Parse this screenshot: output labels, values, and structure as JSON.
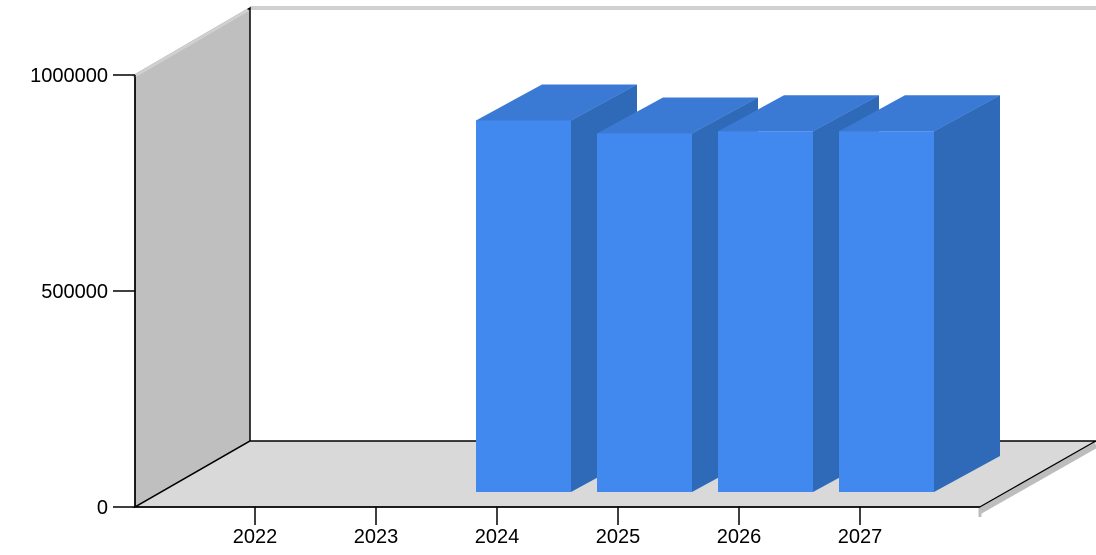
{
  "chart_data": {
    "type": "bar",
    "categories": [
      "2022",
      "2023",
      "2024",
      "2025",
      "2026",
      "2027"
    ],
    "values": [
      0,
      0,
      860000,
      830000,
      835000,
      835000
    ],
    "ylim": [
      0,
      1000000
    ],
    "yticks": [
      0,
      500000,
      1000000
    ],
    "ytick_labels": [
      "0",
      "500000",
      "1000000"
    ],
    "title": "",
    "xlabel": "",
    "ylabel": "",
    "grid": false,
    "legend": "none",
    "style": "3d",
    "colors": {
      "bar_front": "#4189EF",
      "bar_side": "#2E6AB8",
      "bar_top": "#3A7AD4",
      "wall_left": "#BFBFBF",
      "floor": "#D9D9D9",
      "axis": "#000000"
    }
  }
}
